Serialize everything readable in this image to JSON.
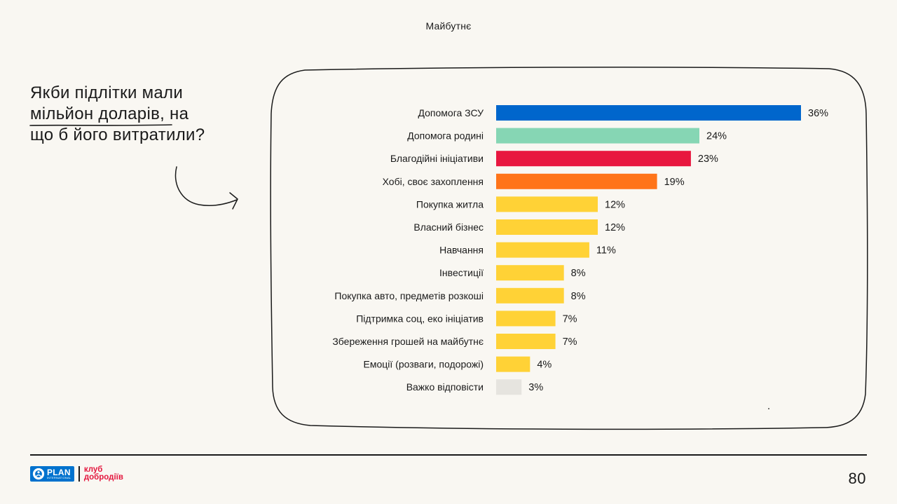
{
  "header": {
    "section_title": "Майбутнє"
  },
  "question": {
    "line1": "Якби підлітки мали",
    "line2_highlight": "мільйон доларів",
    "line2_rest": ", на",
    "line3": "що б його витратили?"
  },
  "chart_data": {
    "type": "bar",
    "orientation": "horizontal",
    "title": "Якби підлітки мали мільйон доларів, на що б його витратили?",
    "xlabel": "",
    "ylabel": "",
    "value_suffix": "%",
    "xlim": [
      0,
      36
    ],
    "grid": false,
    "categories": [
      "Допомога ЗСУ",
      "Допомога родині",
      "Благодійні ініціативи",
      "Хобі, своє захоплення",
      "Покупка житла",
      "Власний бізнес",
      "Навчання",
      "Інвестиції",
      "Покупка авто, предметів розкоші",
      "Підтримка соц, еко ініціатив",
      "Збереження грошей на майбутнє",
      "Емоції (розваги, подорожі)",
      "Важко відповісти"
    ],
    "values": [
      36,
      24,
      23,
      19,
      12,
      12,
      11,
      8,
      8,
      7,
      7,
      4,
      3
    ],
    "value_labels": [
      "36%",
      "24%",
      "23%",
      "19%",
      "12%",
      "12%",
      "11%",
      "8%",
      "8%",
      "7%",
      "7%",
      "4%",
      "3%"
    ],
    "colors": [
      "#0066cc",
      "#86d6b4",
      "#e8173f",
      "#ff7419",
      "#ffd236",
      "#ffd236",
      "#ffd236",
      "#ffd236",
      "#ffd236",
      "#ffd236",
      "#ffd236",
      "#ffd236",
      "#e6e4df"
    ]
  },
  "footer": {
    "logo_plan": "PLAN",
    "logo_plan_sub": "INTERNATIONAL",
    "logo_club_line1": "клуб",
    "logo_club_line2": "добродіїв",
    "page_number": "80"
  }
}
